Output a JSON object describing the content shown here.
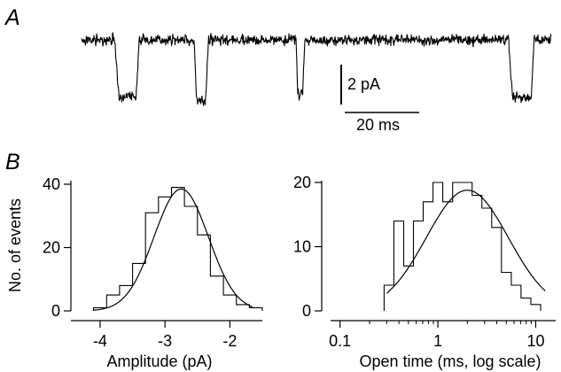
{
  "figure": {
    "panel_a_label": "A",
    "panel_b_label": "B",
    "colors": {
      "ink": "#000000",
      "background": "#ffffff"
    }
  },
  "trace": {
    "scale_bar_current_label": "2 pA",
    "scale_bar_time_label": "20 ms"
  },
  "chart_data": [
    {
      "type": "line",
      "id": "single-channel-trace",
      "title": "",
      "units": {
        "current": "pA",
        "time": "ms"
      },
      "scale_bars": {
        "current": 2,
        "time": 20
      },
      "baseline_current": 0,
      "x": [
        0,
        11.3,
        12.6,
        18.6,
        19.7,
        38.3,
        39.2,
        42.2,
        43.3,
        73.1,
        73.6,
        75.3,
        76.1,
        145.5,
        146.8,
        153.2,
        154.2,
        160.0
      ],
      "y": [
        0,
        0,
        -2.8,
        -2.8,
        0,
        0,
        -3.1,
        -3.1,
        0,
        0,
        -2.7,
        -2.7,
        0,
        0,
        -2.9,
        -2.9,
        0,
        0
      ]
    },
    {
      "type": "bar",
      "id": "amplitude-histogram",
      "histogram": true,
      "xlabel": "Amplitude (pA)",
      "ylabel": "No. of events",
      "xlim": [
        -4.45,
        -1.5
      ],
      "ylim": [
        0,
        40
      ],
      "xticks": [
        -4,
        -3,
        -2
      ],
      "yticks": [
        0,
        20,
        40
      ],
      "bin_edges": [
        -4.1,
        -3.9,
        -3.7,
        -3.5,
        -3.3,
        -3.1,
        -2.9,
        -2.7,
        -2.5,
        -2.3,
        -2.1,
        -1.9,
        -1.7,
        -1.5
      ],
      "values": [
        1,
        5,
        8,
        15,
        31,
        36,
        39,
        33,
        24,
        11,
        5,
        2,
        1
      ],
      "fit": {
        "type": "gaussian",
        "mean": -2.75,
        "sd": 0.42,
        "peak": 38.5,
        "x_range": [
          -4.1,
          -1.65
        ]
      }
    },
    {
      "type": "bar",
      "id": "open-time-histogram",
      "histogram": true,
      "log_x": true,
      "xlabel": "Open time (ms, log scale)",
      "ylabel": "",
      "xlim": [
        0.08,
        16
      ],
      "ylim": [
        0,
        20
      ],
      "xticks": [
        0.1,
        1,
        10
      ],
      "xtick_labels": [
        "0.1",
        "1",
        "10"
      ],
      "yticks": [
        0,
        10,
        20
      ],
      "bin_edges": [
        0.282,
        0.355,
        0.447,
        0.562,
        0.708,
        0.891,
        1.122,
        1.413,
        1.778,
        2.239,
        2.818,
        3.548,
        4.467,
        5.623,
        7.079,
        8.913,
        11.22
      ],
      "values": [
        4,
        14,
        7,
        14,
        17,
        20,
        17,
        20,
        20,
        18,
        16,
        13,
        6,
        4,
        2,
        1
      ],
      "fit": {
        "type": "log-gaussian",
        "peak": 18.8,
        "peak_at": 2.0,
        "log10_sd": 0.42,
        "x_range": [
          0.3,
          12.5
        ]
      }
    }
  ]
}
